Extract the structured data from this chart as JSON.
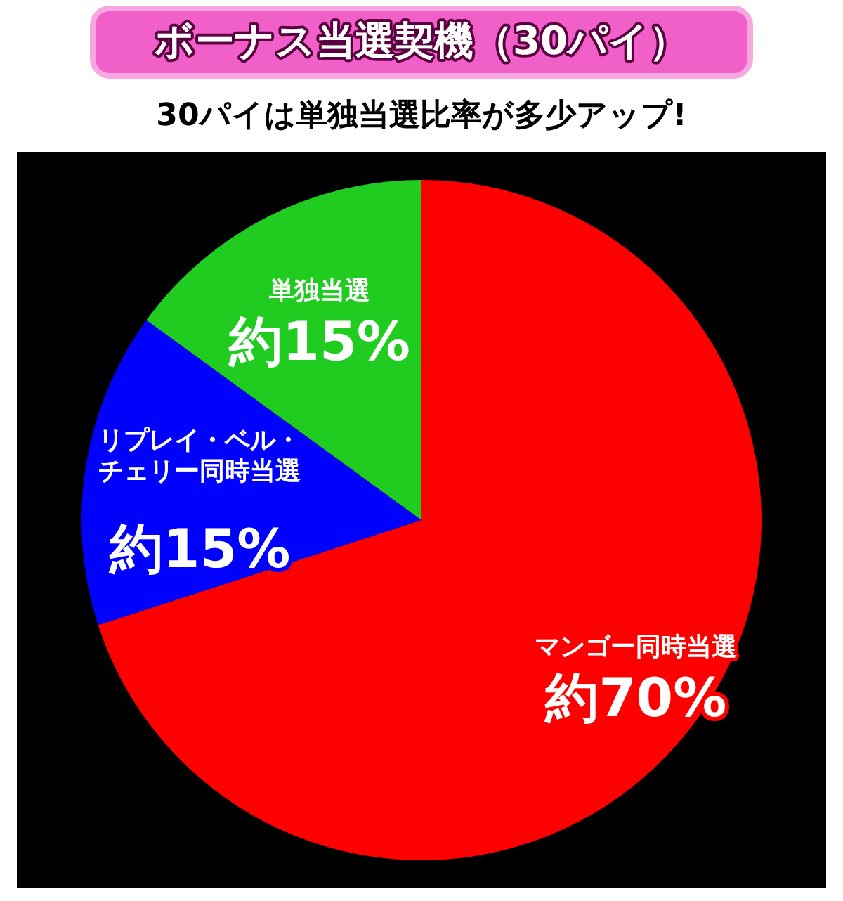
{
  "chart_data": {
    "type": "pie",
    "title": "ボーナス当選契機（30パイ）",
    "subtitle": "30パイは単独当選比率が多少アップ!",
    "categories": [
      "マンゴー同時当選",
      "リプレイ・ベル・チェリー同時当選",
      "単独当選"
    ],
    "values": [
      70,
      15,
      15
    ],
    "colors": [
      "#ff0000",
      "#0000ff",
      "#1fcc1f"
    ],
    "value_labels": [
      "約70%",
      "約15%",
      "約15%"
    ]
  }
}
